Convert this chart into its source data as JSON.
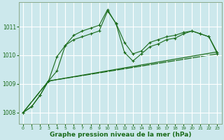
{
  "background_color": "#cce8ec",
  "grid_color": "#ffffff",
  "line_color": "#1a6b1a",
  "xlabel": "Graphe pression niveau de la mer (hPa)",
  "xlabel_fontsize": 6.5,
  "ylim": [
    1007.6,
    1011.85
  ],
  "xlim": [
    -0.5,
    23.5
  ],
  "yticks": [
    1008,
    1009,
    1010,
    1011
  ],
  "xticks": [
    0,
    1,
    2,
    3,
    4,
    5,
    6,
    7,
    8,
    9,
    10,
    11,
    12,
    13,
    14,
    15,
    16,
    17,
    18,
    19,
    20,
    21,
    22,
    23
  ],
  "series": [
    {
      "x": [
        0,
        1,
        2,
        3,
        4,
        5,
        6,
        7,
        8,
        9,
        10,
        11,
        12,
        13,
        14,
        15,
        16,
        17,
        18,
        19,
        20,
        21,
        22,
        23
      ],
      "y": [
        1008.0,
        1008.2,
        1008.6,
        1009.1,
        1009.45,
        1010.35,
        1010.7,
        1010.85,
        1010.95,
        1011.05,
        1011.6,
        1011.1,
        1010.1,
        1009.8,
        1010.05,
        1010.3,
        1010.4,
        1010.55,
        1010.6,
        1010.75,
        1010.85,
        1010.75,
        1010.65,
        1010.05
      ],
      "style": "solid",
      "marker": "+",
      "markersize": 3.5,
      "linewidth": 0.8,
      "zorder": 4
    },
    {
      "x": [
        0,
        1,
        2,
        3,
        4,
        5,
        6,
        7,
        8,
        9,
        10,
        11,
        12,
        13,
        14,
        15,
        16,
        17,
        18,
        19,
        20,
        21,
        22,
        23
      ],
      "y": [
        1008.0,
        1008.2,
        1008.6,
        1009.1,
        1009.95,
        1010.35,
        1010.55,
        1010.65,
        1010.75,
        1010.85,
        1011.55,
        1011.12,
        1010.45,
        1010.05,
        1010.15,
        1010.45,
        1010.55,
        1010.65,
        1010.7,
        1010.8,
        1010.85,
        1010.75,
        1010.65,
        1010.1
      ],
      "style": "solid",
      "marker": "+",
      "markersize": 3.5,
      "linewidth": 0.8,
      "zorder": 3
    },
    {
      "x": [
        0,
        3,
        23
      ],
      "y": [
        1008.0,
        1009.1,
        1010.12
      ],
      "style": "solid",
      "marker": null,
      "markersize": 0,
      "linewidth": 0.9,
      "zorder": 2
    },
    {
      "x": [
        0,
        3,
        23
      ],
      "y": [
        1008.0,
        1009.1,
        1010.05
      ],
      "style": "solid",
      "marker": null,
      "markersize": 0,
      "linewidth": 0.9,
      "zorder": 1
    }
  ]
}
